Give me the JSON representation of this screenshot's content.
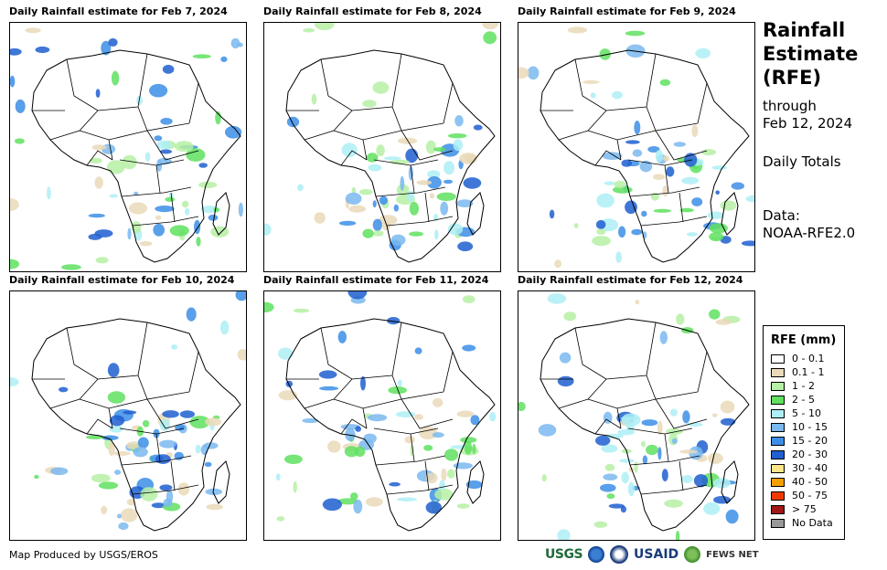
{
  "panels": [
    {
      "title": "Daily Rainfall estimate for Feb 7, 2024"
    },
    {
      "title": "Daily Rainfall estimate for Feb 8, 2024"
    },
    {
      "title": "Daily Rainfall estimate for Feb 9, 2024"
    },
    {
      "title": "Daily Rainfall estimate for Feb 10, 2024"
    },
    {
      "title": "Daily Rainfall estimate for Feb 11, 2024"
    },
    {
      "title": "Daily Rainfall estimate for Feb 12, 2024"
    }
  ],
  "sidebar": {
    "title_line1": "Rainfall",
    "title_line2": "Estimate",
    "title_line3": "(RFE)",
    "through_label": "through",
    "through_date": "Feb 12, 2024",
    "totals_label": "Daily Totals",
    "data_label": "Data:",
    "data_source": "NOAA-RFE2.0"
  },
  "legend": {
    "title": "RFE (mm)",
    "items": [
      {
        "label": "0 - 0.1",
        "color": "#ffffff"
      },
      {
        "label": "0.1 - 1",
        "color": "#ead9b9"
      },
      {
        "label": "1 - 2",
        "color": "#b6f0a4"
      },
      {
        "label": "2 - 5",
        "color": "#5fe05f"
      },
      {
        "label": "5 - 10",
        "color": "#aeeef5"
      },
      {
        "label": "10 - 15",
        "color": "#7ab8f0"
      },
      {
        "label": "15 - 20",
        "color": "#3c8ee6"
      },
      {
        "label": "20 - 30",
        "color": "#1f5fd0"
      },
      {
        "label": "30 - 40",
        "color": "#fde68a"
      },
      {
        "label": "40 - 50",
        "color": "#f5a000"
      },
      {
        "label": "50 - 75",
        "color": "#ee3a00"
      },
      {
        "label": "> 75",
        "color": "#a01818"
      },
      {
        "label": "No Data",
        "color": "#999999"
      }
    ]
  },
  "footer": {
    "credit": "Map Produced by USGS/EROS",
    "logo_usgs": "USGS",
    "logo_usaid": "USAID",
    "logo_fews": "FEWS NET"
  }
}
